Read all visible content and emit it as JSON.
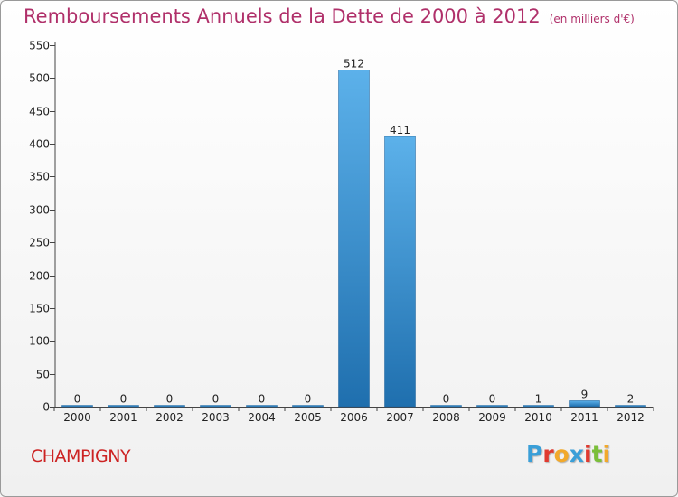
{
  "header": {
    "title": "Remboursements Annuels de la Dette de 2000 à 2012",
    "unit": "(en milliers d'€)"
  },
  "footer": {
    "city": "CHAMPIGNY",
    "logo_letters": [
      "P",
      "r",
      "o",
      "x",
      "i",
      "t",
      "i"
    ],
    "logo_colors": [
      "#3a9fd8",
      "#e03a2f",
      "#f2a92b",
      "#3a9fd8",
      "#e03a2f",
      "#7bbf3a",
      "#f2a92b"
    ]
  },
  "colors": {
    "title": "#b0306a",
    "city": "#cc2222",
    "bar_top": "#5cb1ea",
    "bar_bottom": "#1f6fae",
    "grid": "#444444"
  },
  "chart_data": {
    "type": "bar",
    "title": "Remboursements Annuels de la Dette de 2000 à 2012",
    "subtitle": "(en milliers d'€)",
    "categories": [
      "2000",
      "2001",
      "2002",
      "2003",
      "2004",
      "2005",
      "2006",
      "2007",
      "2008",
      "2009",
      "2010",
      "2011",
      "2012"
    ],
    "values": [
      0,
      0,
      0,
      0,
      0,
      0,
      512,
      411,
      0,
      0,
      1,
      9,
      2
    ],
    "value_labels": [
      "0",
      "0",
      "0",
      "0",
      "0",
      "0",
      "512",
      "411",
      "0",
      "0",
      "1",
      "9",
      "2"
    ],
    "ylim": [
      0,
      550
    ],
    "yticks": [
      0,
      50,
      100,
      150,
      200,
      250,
      300,
      350,
      400,
      450,
      500,
      550
    ],
    "xlabel": "",
    "ylabel": "",
    "grid": false
  }
}
